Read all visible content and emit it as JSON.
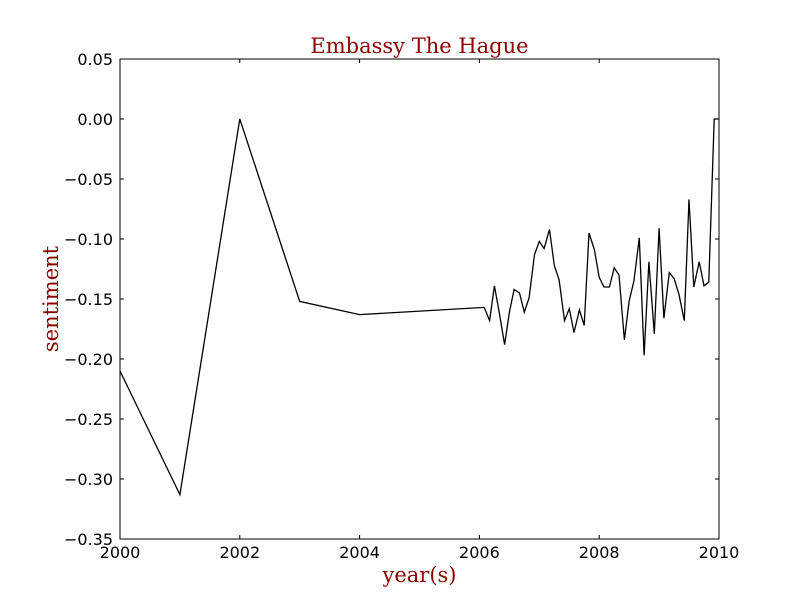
{
  "chart_data": {
    "type": "line",
    "title": "Embassy The Hague",
    "xlabel": "year(s)",
    "ylabel": "sentiment",
    "xlim": [
      2000,
      2010
    ],
    "ylim": [
      -0.35,
      0.05
    ],
    "x_ticks": [
      "2000",
      "2002",
      "2004",
      "2006",
      "2008",
      "2010"
    ],
    "y_ticks": [
      "0.05",
      "0.00",
      "−0.05",
      "−0.10",
      "−0.15",
      "−0.20",
      "−0.25",
      "−0.30",
      "−0.35"
    ],
    "grid": false,
    "colors": {
      "title": "#8b0000",
      "axis_label": "#8b0000",
      "line": "#000000"
    },
    "series": [
      {
        "x": [
          2000.0,
          2001.0,
          2002.0,
          2003.0,
          2004.0,
          2006.08,
          2006.17,
          2006.25,
          2006.33,
          2006.42,
          2006.5,
          2006.58,
          2006.67,
          2006.75,
          2006.83,
          2006.92,
          2007.0,
          2007.08,
          2007.17,
          2007.25,
          2007.33,
          2007.42,
          2007.5,
          2007.58,
          2007.67,
          2007.75,
          2007.83,
          2007.92,
          2008.0,
          2008.08,
          2008.17,
          2008.25,
          2008.33,
          2008.42,
          2008.5,
          2008.58,
          2008.67,
          2008.75,
          2008.83,
          2008.92,
          2009.0,
          2009.08,
          2009.17,
          2009.25,
          2009.33,
          2009.42,
          2009.5,
          2009.58,
          2009.67,
          2009.75,
          2009.83,
          2009.92,
          2010.0
        ],
        "y": [
          -0.21,
          -0.313,
          0.0,
          -0.152,
          -0.163,
          -0.157,
          -0.168,
          -0.139,
          -0.161,
          -0.188,
          -0.161,
          -0.142,
          -0.145,
          -0.161,
          -0.149,
          -0.113,
          -0.102,
          -0.108,
          -0.092,
          -0.122,
          -0.134,
          -0.168,
          -0.158,
          -0.178,
          -0.159,
          -0.172,
          -0.095,
          -0.109,
          -0.132,
          -0.14,
          -0.14,
          -0.124,
          -0.13,
          -0.184,
          -0.152,
          -0.135,
          -0.099,
          -0.197,
          -0.119,
          -0.179,
          -0.091,
          -0.166,
          -0.128,
          -0.133,
          -0.146,
          -0.168,
          -0.067,
          -0.14,
          -0.119,
          -0.139,
          -0.136,
          0.0,
          0.0
        ]
      }
    ]
  }
}
